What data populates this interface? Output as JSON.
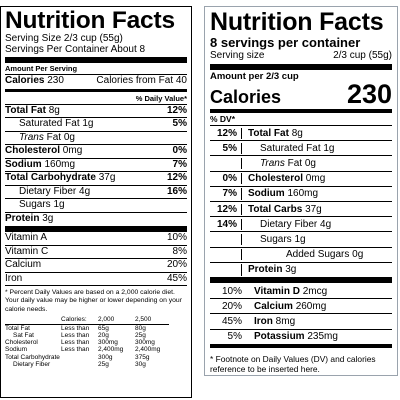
{
  "left": {
    "title": "Nutrition Facts",
    "serving_size": "Serving Size 2/3 cup (55g)",
    "servings_per_container": "Servings Per Container About 8",
    "amount_per_serving": "Amount Per Serving",
    "calories_label": "Calories",
    "calories_value": "230",
    "calories_from_fat": "Calories from Fat 40",
    "dv_header": "% Daily Value*",
    "nutrients": [
      {
        "label": "Total Fat",
        "amount": "8g",
        "dv": "12%"
      },
      {
        "label": "Saturated Fat",
        "amount": "1g",
        "dv": "5%"
      },
      {
        "label": "Trans",
        "amount": "Fat 0g",
        "dv": ""
      },
      {
        "label": "Cholesterol",
        "amount": "0mg",
        "dv": "0%"
      },
      {
        "label": "Sodium",
        "amount": "160mg",
        "dv": "7%"
      },
      {
        "label": "Total Carbohydrate",
        "amount": "37g",
        "dv": "12%"
      },
      {
        "label": "Dietary Fiber",
        "amount": "4g",
        "dv": "16%"
      },
      {
        "label": "Sugars",
        "amount": "1g",
        "dv": ""
      },
      {
        "label": "Protein",
        "amount": "3g",
        "dv": ""
      }
    ],
    "vitamins": [
      {
        "label": "Vitamin A",
        "dv": "10%"
      },
      {
        "label": "Vitamin C",
        "dv": "8%"
      },
      {
        "label": "Calcium",
        "dv": "20%"
      },
      {
        "label": "Iron",
        "dv": "45%"
      }
    ],
    "footnote": "* Percent Daily Values are based on a 2,000 calorie diet. Your daily value may be higher or lower depending on your calorie needs.",
    "footnote_table": [
      [
        "",
        "Calories:",
        "2,000",
        "2,500"
      ],
      [
        "Total Fat",
        "Less than",
        "65g",
        "80g"
      ],
      [
        "Sat Fat",
        "Less than",
        "20g",
        "25g"
      ],
      [
        "Cholesterol",
        "Less than",
        "300mg",
        "300mg"
      ],
      [
        "Sodium",
        "Less than",
        "2,400mg",
        "2,400mg"
      ],
      [
        "Total Carbohydrate",
        "",
        "300g",
        "375g"
      ],
      [
        "Dietary Fiber",
        "",
        "25g",
        "30g"
      ]
    ]
  },
  "right": {
    "title": "Nutrition Facts",
    "servings": "8 servings per container",
    "serving_size_label": "Serving size",
    "serving_size_value": "2/3 cup (55g)",
    "amount_per": "Amount per 2/3 cup",
    "calories_label": "Calories",
    "calories_value": "230",
    "dv_header": "% DV*",
    "nutrients": [
      {
        "dv": "12%",
        "label": "Total Fat",
        "amount": "8g"
      },
      {
        "dv": "5%",
        "label": "Saturated Fat",
        "amount": "1g"
      },
      {
        "dv": "",
        "label": "Trans",
        "amount": "Fat 0g"
      },
      {
        "dv": "0%",
        "label": "Cholesterol",
        "amount": "0mg"
      },
      {
        "dv": "7%",
        "label": "Sodium",
        "amount": "160mg"
      },
      {
        "dv": "12%",
        "label": "Total Carbs",
        "amount": "37g"
      },
      {
        "dv": "14%",
        "label": "Dietary Fiber",
        "amount": "4g"
      },
      {
        "dv": "",
        "label": "Sugars",
        "amount": "1g"
      },
      {
        "dv": "",
        "label": "Added Sugars",
        "amount": "0g"
      },
      {
        "dv": "",
        "label": "Protein",
        "amount": "3g"
      }
    ],
    "vitamins": [
      {
        "dv": "10%",
        "label": "Vitamin D",
        "amount": "2mcg"
      },
      {
        "dv": "20%",
        "label": "Calcium",
        "amount": "260mg"
      },
      {
        "dv": "45%",
        "label": "Iron",
        "amount": "8mg"
      },
      {
        "dv": "5%",
        "label": "Potassium",
        "amount": "235mg"
      }
    ],
    "footnote": "* Footnote on Daily Values (DV) and calories reference to be inserted here."
  }
}
